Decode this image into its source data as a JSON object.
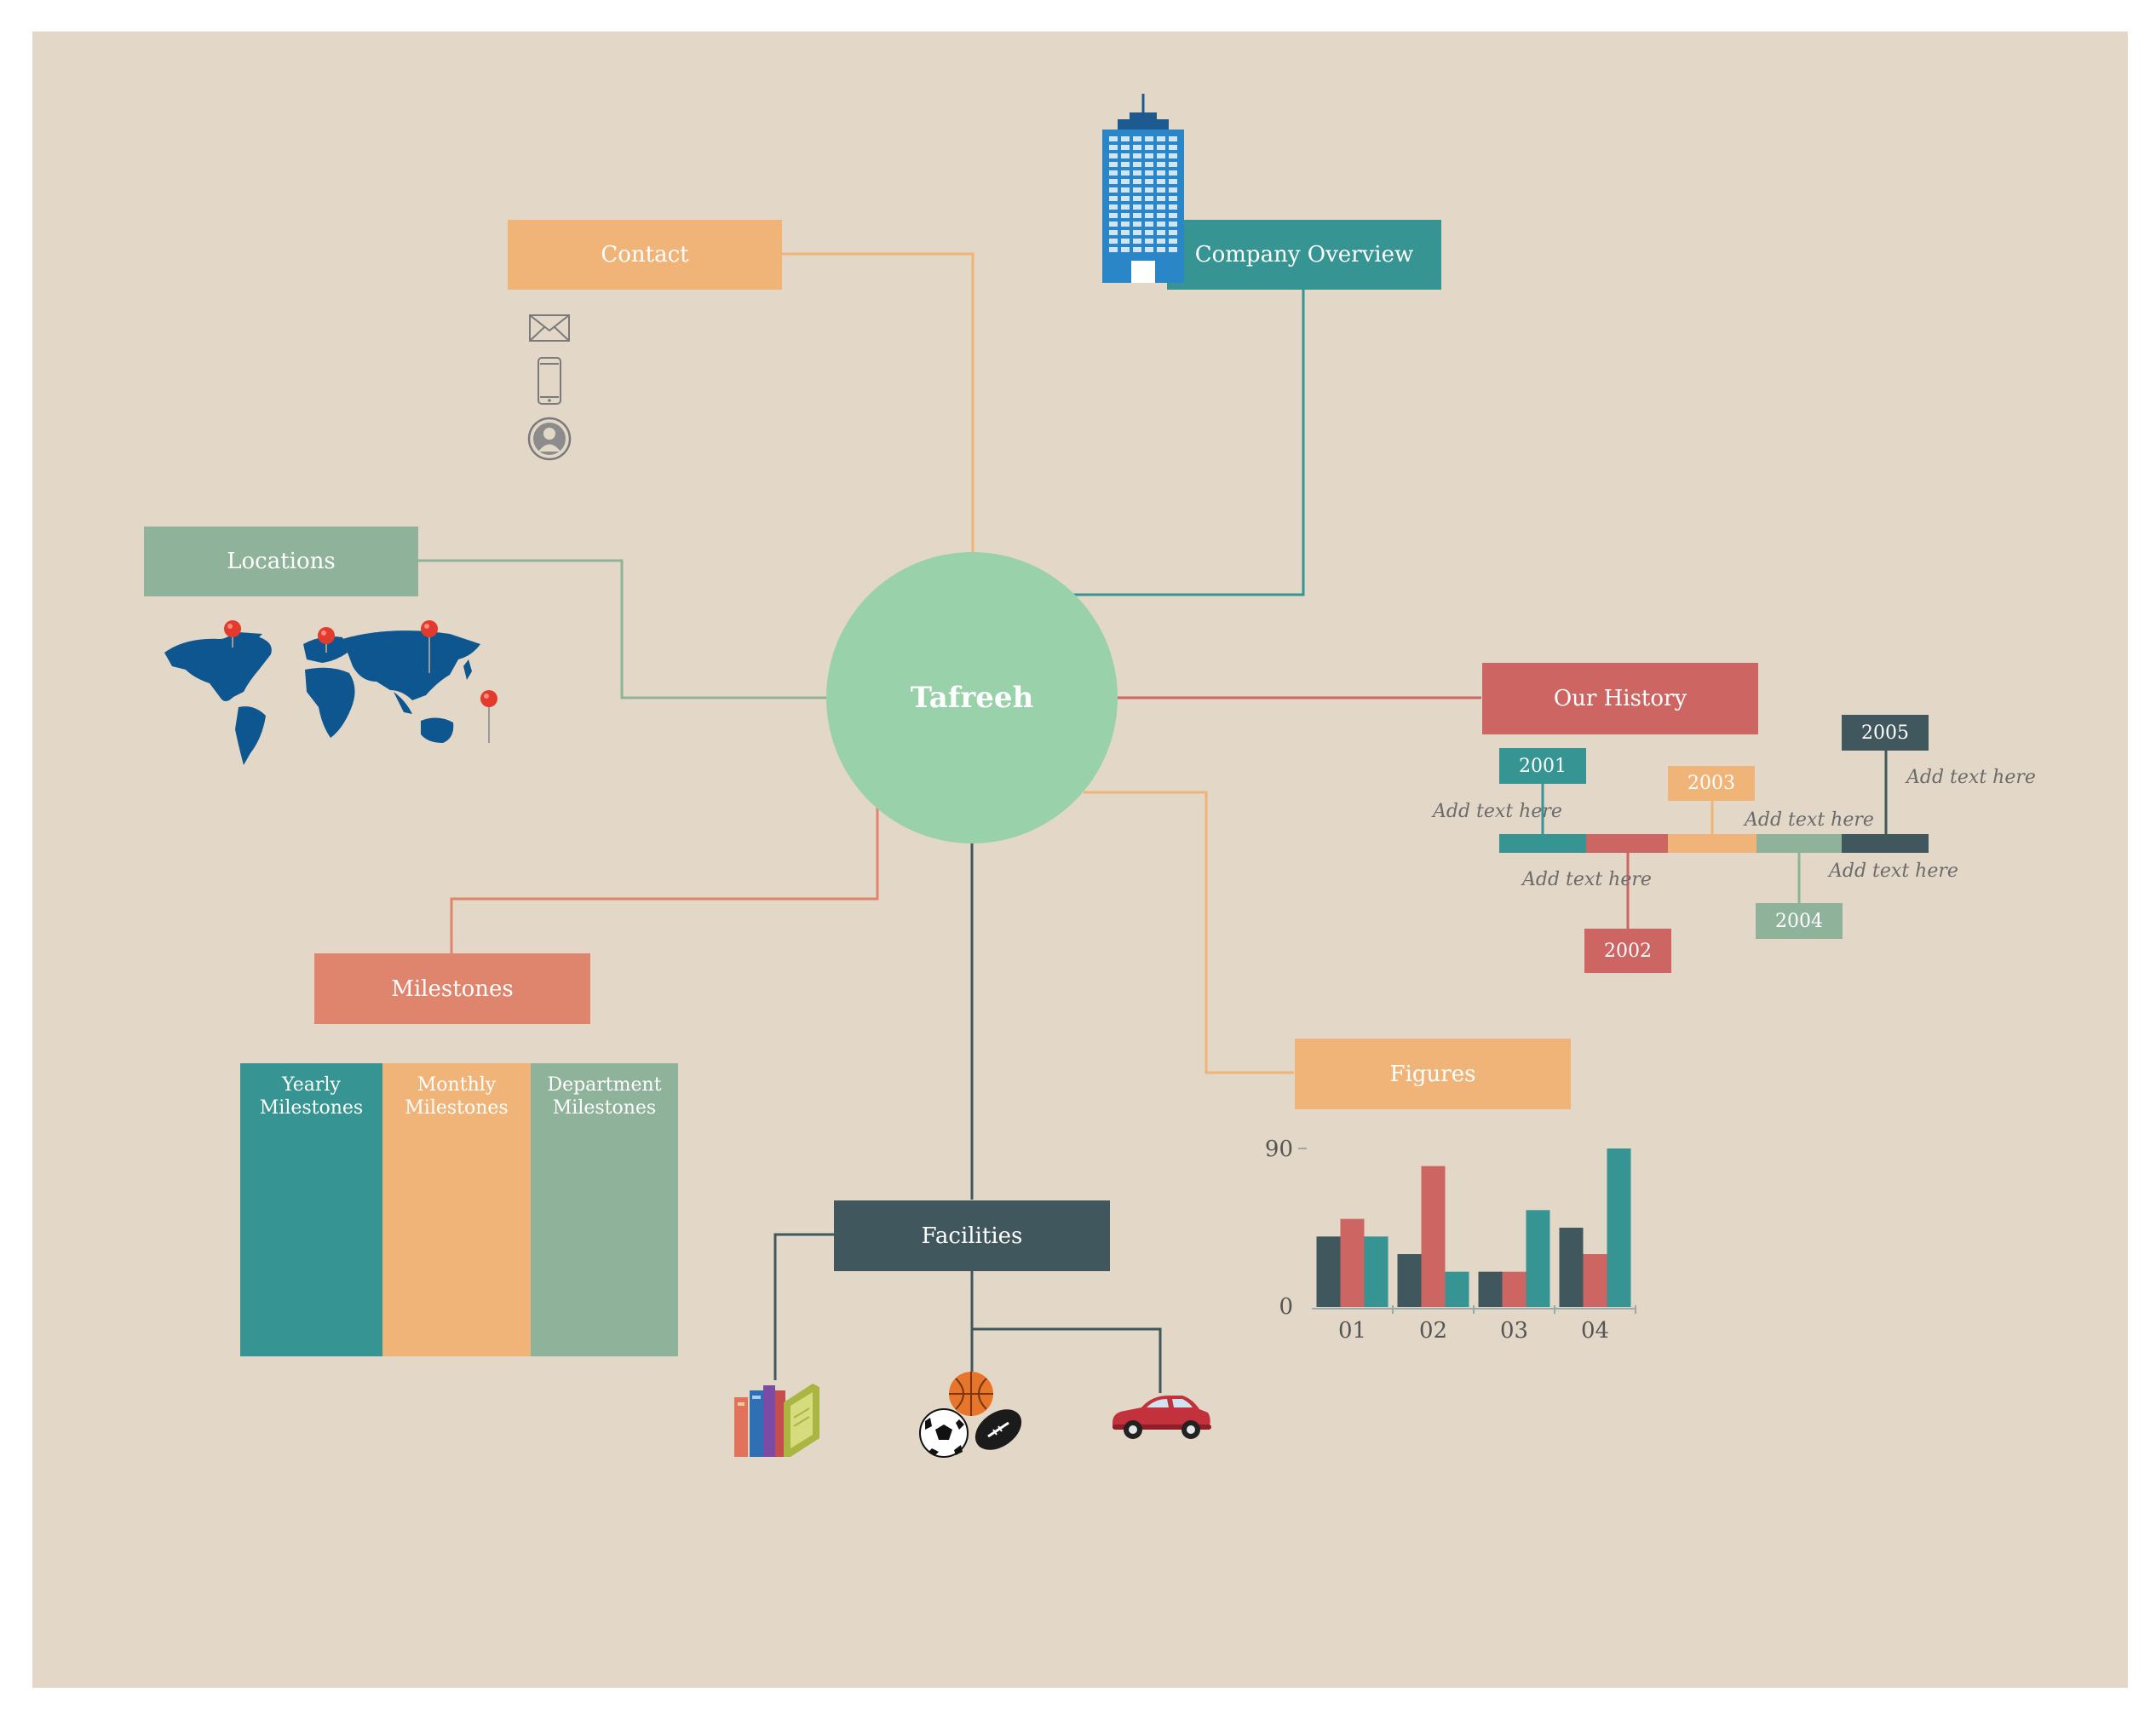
{
  "center": {
    "title": "Tafreeh"
  },
  "branches": {
    "contact": "Contact",
    "company_overview": "Company Overview",
    "locations": "Locations",
    "our_history": "Our History",
    "milestones": "Milestones",
    "figures": "Figures",
    "facilities": "Facilities"
  },
  "history": {
    "years": [
      "2001",
      "2002",
      "2003",
      "2004",
      "2005"
    ],
    "note": "Add text here"
  },
  "milestones": {
    "columns": [
      {
        "line1": "Yearly",
        "line2": "Milestones"
      },
      {
        "line1": "Monthly",
        "line2": "Milestones"
      },
      {
        "line1": "Department",
        "line2": "Milestones"
      }
    ]
  },
  "colors": {
    "teal": "#369592",
    "orange": "#f0b478",
    "sage": "#8fb29a",
    "red": "#cd6562",
    "salmon": "#df846d",
    "slate": "#3f575d",
    "mint": "#98d1aa"
  },
  "icons": {
    "contact": [
      "envelope-icon",
      "phone-icon",
      "person-icon"
    ],
    "company": "building-icon",
    "locations": "world-map-icon",
    "facilities": [
      "books-icon",
      "sports-balls-icon",
      "car-icon"
    ]
  },
  "chart_data": {
    "type": "bar",
    "categories": [
      "01",
      "02",
      "03",
      "04"
    ],
    "ytick_labels": [
      "0",
      "90"
    ],
    "ylim": [
      0,
      90
    ],
    "series": [
      {
        "color": "#3f575d",
        "values": [
          40,
          30,
          20,
          45
        ]
      },
      {
        "color": "#cd6562",
        "values": [
          50,
          80,
          20,
          30
        ]
      },
      {
        "color": "#369592",
        "values": [
          40,
          20,
          55,
          90
        ]
      }
    ]
  }
}
